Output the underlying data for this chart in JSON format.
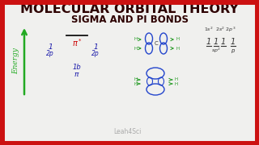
{
  "title_line1": "MOLECULAR ORBITAL THEORY",
  "title_line2": "SIGMA AND PI BONDS",
  "title_color": "#2d0000",
  "title_fs1": 11.5,
  "title_fs2": 8.5,
  "bg_color": "#f0f0ee",
  "border_color": "#cc1111",
  "energy_color": "#22aa22",
  "label_color": "#1a1aaa",
  "red_label_color": "#cc0000",
  "h_color": "#229922",
  "config_color": "#333333",
  "watermark": "Leah4Sci",
  "lobe_color": "#2244cc",
  "lobe_color2": "#4466dd"
}
